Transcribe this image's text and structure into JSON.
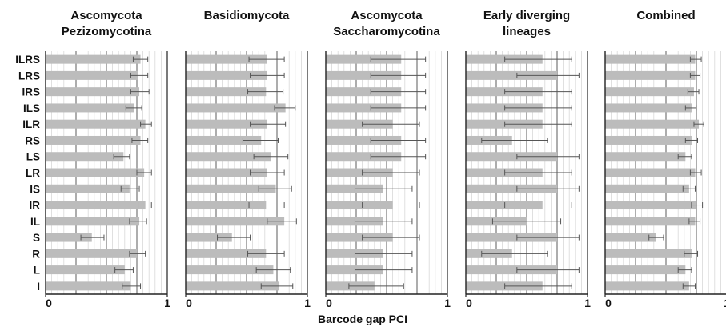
{
  "chart_data": {
    "type": "bar",
    "orientation": "horizontal",
    "xlabel": "Barcode gap PCI",
    "xlim": [
      0,
      1
    ],
    "x_ticks": [
      "0",
      "1"
    ],
    "grid": true,
    "categories": [
      "ILRS",
      "LRS",
      "IRS",
      "ILS",
      "ILR",
      "RS",
      "LS",
      "LR",
      "IS",
      "IR",
      "IL",
      "S",
      "R",
      "L",
      "I"
    ],
    "panels": [
      {
        "title_lines": [
          "Ascomycota",
          "Pezizomycotina"
        ],
        "values": [
          0.78,
          0.76,
          0.77,
          0.73,
          0.82,
          0.78,
          0.64,
          0.81,
          0.69,
          0.82,
          0.77,
          0.38,
          0.75,
          0.65,
          0.7
        ],
        "err_low": [
          0.72,
          0.7,
          0.7,
          0.66,
          0.78,
          0.71,
          0.56,
          0.75,
          0.62,
          0.76,
          0.69,
          0.29,
          0.69,
          0.57,
          0.63
        ],
        "err_high": [
          0.84,
          0.84,
          0.85,
          0.79,
          0.87,
          0.84,
          0.69,
          0.87,
          0.77,
          0.87,
          0.83,
          0.48,
          0.82,
          0.72,
          0.78
        ]
      },
      {
        "title_lines": [
          "Basidiomycota"
        ],
        "values": [
          0.67,
          0.67,
          0.66,
          0.82,
          0.67,
          0.62,
          0.7,
          0.67,
          0.74,
          0.66,
          0.81,
          0.38,
          0.66,
          0.72,
          0.77
        ],
        "err_low": [
          0.52,
          0.53,
          0.51,
          0.73,
          0.53,
          0.47,
          0.56,
          0.53,
          0.6,
          0.52,
          0.67,
          0.26,
          0.51,
          0.58,
          0.62
        ],
        "err_high": [
          0.81,
          0.81,
          0.8,
          0.9,
          0.82,
          0.76,
          0.84,
          0.81,
          0.87,
          0.81,
          0.91,
          0.53,
          0.81,
          0.86,
          0.88
        ]
      },
      {
        "title_lines": [
          "Ascomycota",
          "Saccharomycotina"
        ],
        "values": [
          0.62,
          0.62,
          0.62,
          0.62,
          0.55,
          0.62,
          0.62,
          0.55,
          0.47,
          0.55,
          0.47,
          0.55,
          0.47,
          0.47,
          0.4
        ],
        "err_low": [
          0.37,
          0.37,
          0.37,
          0.37,
          0.3,
          0.37,
          0.37,
          0.3,
          0.24,
          0.3,
          0.24,
          0.3,
          0.24,
          0.24,
          0.19
        ],
        "err_high": [
          0.82,
          0.82,
          0.82,
          0.82,
          0.77,
          0.82,
          0.82,
          0.77,
          0.71,
          0.77,
          0.71,
          0.77,
          0.71,
          0.71,
          0.64
        ]
      },
      {
        "title_lines": [
          "Early diverging",
          "lineages"
        ],
        "values": [
          0.63,
          0.75,
          0.63,
          0.63,
          0.63,
          0.38,
          0.75,
          0.63,
          0.75,
          0.63,
          0.5,
          0.75,
          0.38,
          0.75,
          0.63
        ],
        "err_low": [
          0.32,
          0.42,
          0.32,
          0.32,
          0.32,
          0.13,
          0.42,
          0.32,
          0.42,
          0.32,
          0.22,
          0.42,
          0.13,
          0.42,
          0.32
        ],
        "err_high": [
          0.87,
          0.93,
          0.87,
          0.87,
          0.87,
          0.67,
          0.93,
          0.87,
          0.93,
          0.87,
          0.78,
          0.93,
          0.67,
          0.93,
          0.87
        ]
      },
      {
        "title_lines": [
          "Combined"
        ],
        "values": [
          0.74,
          0.74,
          0.73,
          0.71,
          0.77,
          0.71,
          0.66,
          0.74,
          0.69,
          0.75,
          0.74,
          0.42,
          0.71,
          0.66,
          0.69
        ],
        "err_low": [
          0.7,
          0.7,
          0.68,
          0.66,
          0.73,
          0.66,
          0.6,
          0.7,
          0.64,
          0.71,
          0.69,
          0.36,
          0.65,
          0.6,
          0.64
        ],
        "err_high": [
          0.79,
          0.78,
          0.77,
          0.75,
          0.81,
          0.76,
          0.71,
          0.79,
          0.74,
          0.8,
          0.78,
          0.48,
          0.76,
          0.71,
          0.74
        ]
      }
    ]
  },
  "colors": {
    "bar": "#bcbcbc",
    "error": "#555555",
    "grid_minor": "#d8d8d8",
    "grid_major": "#6a6a6a",
    "axis": "#222222",
    "text": "#111111"
  }
}
